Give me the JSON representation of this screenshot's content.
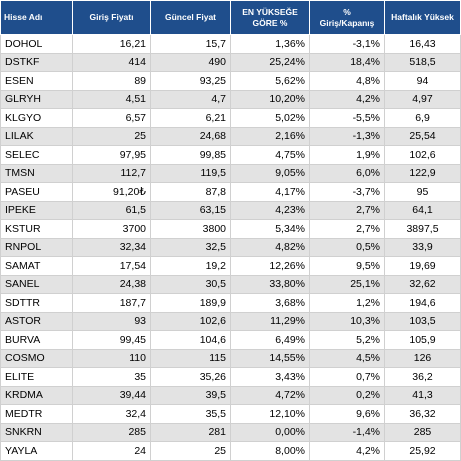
{
  "table": {
    "headers": {
      "name": "Hisse Adı",
      "entry": "Giriş Fiyatı",
      "current": "Güncel Fiyat",
      "max_gain_line1": "EN YÜKSEĞE",
      "max_gain_line2": "GÖRE %",
      "change_line1": "%",
      "change_line2": "Giriş/Kapanış",
      "weekly_high": "Haftalık Yüksek"
    },
    "rows": [
      {
        "name": "DOHOL",
        "entry": "16,21",
        "current": "15,7",
        "max_gain": "1,36%",
        "change": "-3,1%",
        "weekly_high": "16,43"
      },
      {
        "name": "DSTKF",
        "entry": "414",
        "current": "490",
        "max_gain": "25,24%",
        "change": "18,4%",
        "weekly_high": "518,5"
      },
      {
        "name": "ESEN",
        "entry": "89",
        "current": "93,25",
        "max_gain": "5,62%",
        "change": "4,8%",
        "weekly_high": "94"
      },
      {
        "name": "GLRYH",
        "entry": "4,51",
        "current": "4,7",
        "max_gain": "10,20%",
        "change": "4,2%",
        "weekly_high": "4,97"
      },
      {
        "name": "KLGYO",
        "entry": "6,57",
        "current": "6,21",
        "max_gain": "5,02%",
        "change": "-5,5%",
        "weekly_high": "6,9"
      },
      {
        "name": "LILAK",
        "entry": "25",
        "current": "24,68",
        "max_gain": "2,16%",
        "change": "-1,3%",
        "weekly_high": "25,54"
      },
      {
        "name": "SELEC",
        "entry": "97,95",
        "current": "99,85",
        "max_gain": "4,75%",
        "change": "1,9%",
        "weekly_high": "102,6"
      },
      {
        "name": "TMSN",
        "entry": "112,7",
        "current": "119,5",
        "max_gain": "9,05%",
        "change": "6,0%",
        "weekly_high": "122,9"
      },
      {
        "name": "PASEU",
        "entry": "91,20₺",
        "current": "87,8",
        "max_gain": "4,17%",
        "change": "-3,7%",
        "weekly_high": "95"
      },
      {
        "name": "IPEKE",
        "entry": "61,5",
        "current": "63,15",
        "max_gain": "4,23%",
        "change": "2,7%",
        "weekly_high": "64,1"
      },
      {
        "name": "KSTUR",
        "entry": "3700",
        "current": "3800",
        "max_gain": "5,34%",
        "change": "2,7%",
        "weekly_high": "3897,5"
      },
      {
        "name": "RNPOL",
        "entry": "32,34",
        "current": "32,5",
        "max_gain": "4,82%",
        "change": "0,5%",
        "weekly_high": "33,9"
      },
      {
        "name": "SAMAT",
        "entry": "17,54",
        "current": "19,2",
        "max_gain": "12,26%",
        "change": "9,5%",
        "weekly_high": "19,69"
      },
      {
        "name": "SANEL",
        "entry": "24,38",
        "current": "30,5",
        "max_gain": "33,80%",
        "change": "25,1%",
        "weekly_high": "32,62"
      },
      {
        "name": "SDTTR",
        "entry": "187,7",
        "current": "189,9",
        "max_gain": "3,68%",
        "change": "1,2%",
        "weekly_high": "194,6"
      },
      {
        "name": "ASTOR",
        "entry": "93",
        "current": "102,6",
        "max_gain": "11,29%",
        "change": "10,3%",
        "weekly_high": "103,5"
      },
      {
        "name": "BURVA",
        "entry": "99,45",
        "current": "104,6",
        "max_gain": "6,49%",
        "change": "5,2%",
        "weekly_high": "105,9"
      },
      {
        "name": "COSMO",
        "entry": "110",
        "current": "115",
        "max_gain": "14,55%",
        "change": "4,5%",
        "weekly_high": "126"
      },
      {
        "name": "ELITE",
        "entry": "35",
        "current": "35,26",
        "max_gain": "3,43%",
        "change": "0,7%",
        "weekly_high": "36,2"
      },
      {
        "name": "KRDMA",
        "entry": "39,44",
        "current": "39,5",
        "max_gain": "4,72%",
        "change": "0,2%",
        "weekly_high": "41,3"
      },
      {
        "name": "MEDTR",
        "entry": "32,4",
        "current": "35,5",
        "max_gain": "12,10%",
        "change": "9,6%",
        "weekly_high": "36,32"
      },
      {
        "name": "SNKRN",
        "entry": "285",
        "current": "281",
        "max_gain": "0,00%",
        "change": "-1,4%",
        "weekly_high": "285"
      },
      {
        "name": "YAYLA",
        "entry": "24",
        "current": "25",
        "max_gain": "8,00%",
        "change": "4,2%",
        "weekly_high": "25,92"
      }
    ]
  },
  "colors": {
    "header_bg": "#1f4e8c",
    "header_text": "#ffffff",
    "row_alt_bg": "#e3e3e3",
    "row_bg": "#ffffff"
  }
}
